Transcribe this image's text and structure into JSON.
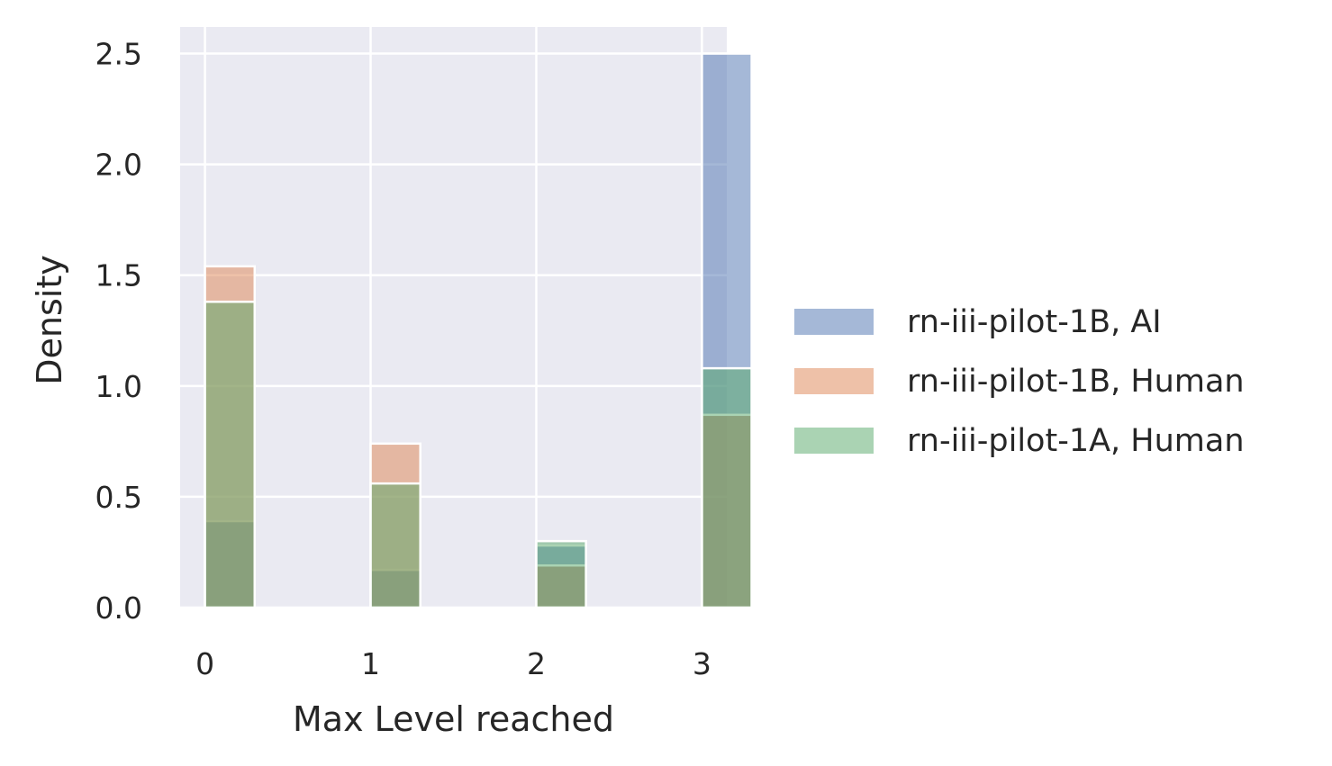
{
  "chart_data": {
    "type": "histogram",
    "stat": "density",
    "xlabel": "Max Level reached",
    "ylabel": "Density",
    "xlim": [
      -0.15,
      3.15
    ],
    "ylim": [
      0,
      2.62
    ],
    "xticks": [
      0,
      1,
      2,
      3
    ],
    "xtick_labels": [
      "0",
      "1",
      "2",
      "3"
    ],
    "yticks": [
      0.0,
      0.5,
      1.0,
      1.5,
      2.0,
      2.5
    ],
    "ytick_labels": [
      "0.0",
      "0.5",
      "1.0",
      "1.5",
      "2.0",
      "2.5"
    ],
    "bin_width": 0.3,
    "grid": true,
    "legend_position": "right-outside",
    "background": "#eaeaf2",
    "series": [
      {
        "name": "rn-iii-pilot-1B, AI",
        "color": "#4c72b0",
        "alpha": 0.5,
        "x": [
          0,
          1,
          2,
          3
        ],
        "values": [
          0.39,
          0.17,
          0.28,
          2.5
        ]
      },
      {
        "name": "rn-iii-pilot-1B, Human",
        "color": "#dd8452",
        "alpha": 0.5,
        "x": [
          0,
          1,
          2,
          3
        ],
        "values": [
          1.54,
          0.74,
          0.19,
          0.87
        ]
      },
      {
        "name": "rn-iii-pilot-1A, Human",
        "color": "#55a868",
        "alpha": 0.5,
        "x": [
          0,
          1,
          2,
          3
        ],
        "values": [
          1.38,
          0.56,
          0.3,
          1.08
        ]
      }
    ]
  }
}
